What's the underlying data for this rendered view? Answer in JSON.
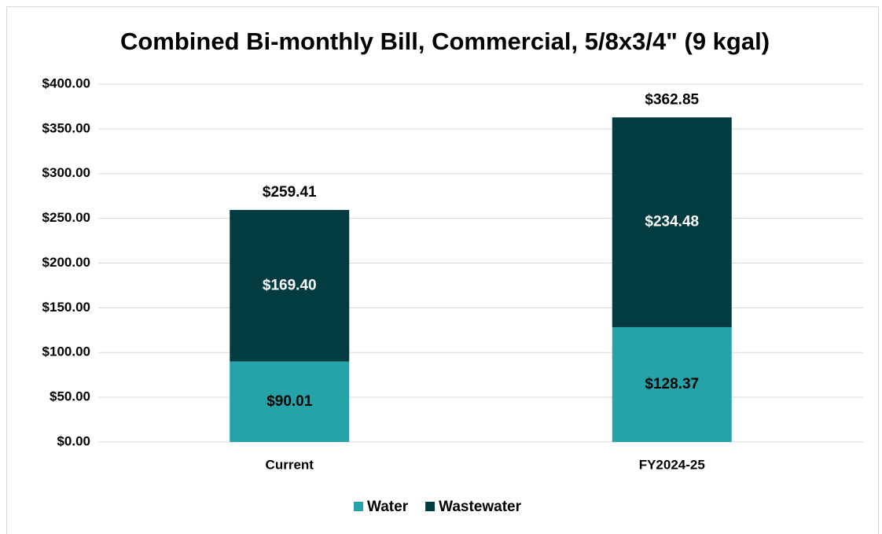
{
  "chart_data": {
    "type": "stacked_bar",
    "title": "Combined Bi-monthly Bill, Commercial, 5/8x3/4\" (9 kgal)",
    "categories": [
      "Current",
      "FY2024-25"
    ],
    "series": [
      {
        "name": "Water",
        "color": "#26a3a9",
        "values": [
          90.01,
          128.37
        ],
        "value_labels": [
          "$90.01",
          "$128.37"
        ],
        "label_color": "#000000"
      },
      {
        "name": "Wastewater",
        "color": "#033c40",
        "values": [
          169.4,
          234.48
        ],
        "value_labels": [
          "$169.40",
          "$234.48"
        ],
        "label_color": "#ffffff"
      }
    ],
    "totals": [
      259.41,
      362.85
    ],
    "total_labels": [
      "$259.41",
      "$362.85"
    ],
    "ylim": [
      0,
      400
    ],
    "yticks": [
      {
        "value": 0,
        "label": "$0.00"
      },
      {
        "value": 50,
        "label": "$50.00"
      },
      {
        "value": 100,
        "label": "$100.00"
      },
      {
        "value": 150,
        "label": "$150.00"
      },
      {
        "value": 200,
        "label": "$200.00"
      },
      {
        "value": 250,
        "label": "$250.00"
      },
      {
        "value": 300,
        "label": "$300.00"
      },
      {
        "value": 350,
        "label": "$350.00"
      },
      {
        "value": 400,
        "label": "$400.00"
      }
    ],
    "grid": true,
    "legend": "bottom"
  }
}
